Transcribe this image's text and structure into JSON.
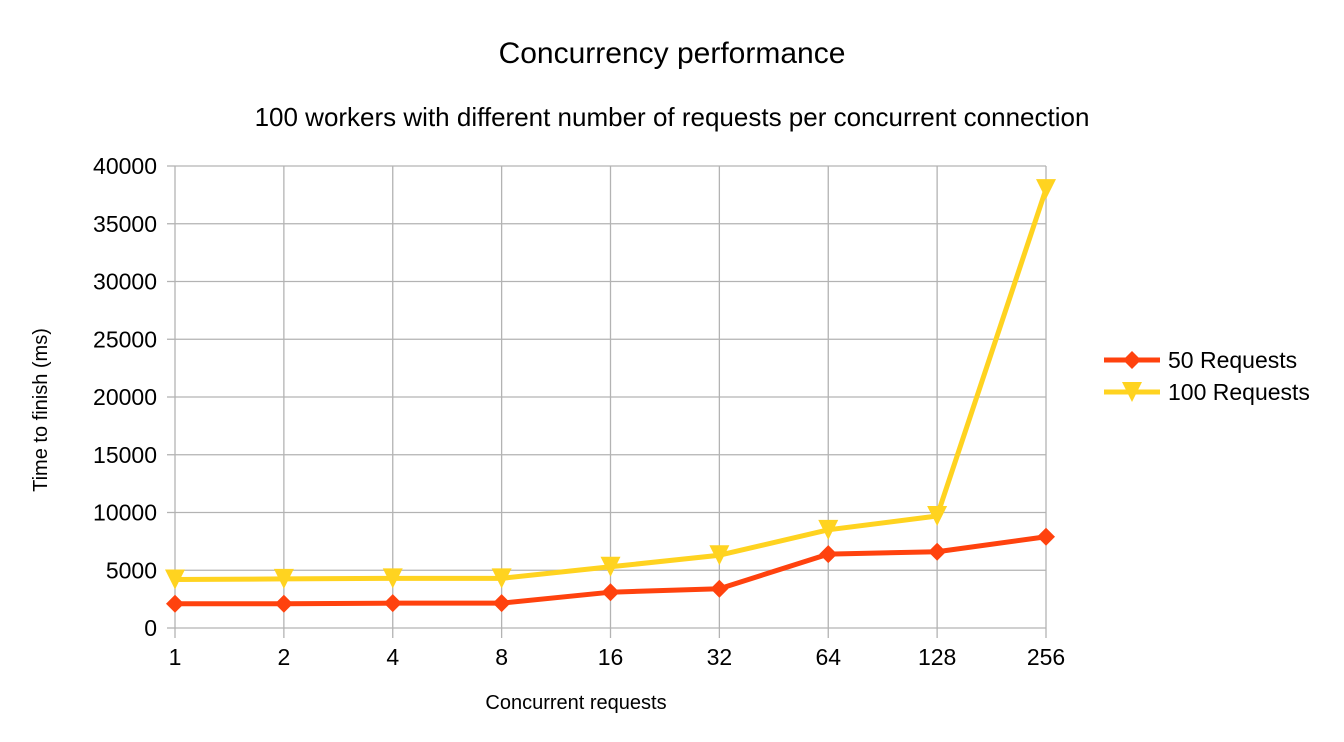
{
  "chart_data": {
    "type": "line",
    "title": "Concurrency performance",
    "subtitle": "100 workers with different number of requests per concurrent connection",
    "xlabel": "Concurrent requests",
    "ylabel": "Time to finish (ms)",
    "categories": [
      "1",
      "2",
      "4",
      "8",
      "16",
      "32",
      "64",
      "128",
      "256"
    ],
    "ylim": [
      0,
      40000
    ],
    "yticks": [
      0,
      5000,
      10000,
      15000,
      20000,
      25000,
      30000,
      35000,
      40000
    ],
    "grid": true,
    "legend_position": "right",
    "series": [
      {
        "name": "50 Requests",
        "color": "#ff420e",
        "marker": "diamond",
        "values": [
          2100,
          2100,
          2150,
          2150,
          3100,
          3400,
          6400,
          6600,
          7900
        ]
      },
      {
        "name": "100 Requests",
        "color": "#ffd320",
        "marker": "triangle-down",
        "values": [
          4200,
          4250,
          4300,
          4300,
          5300,
          6300,
          8500,
          9700,
          38000
        ]
      }
    ]
  }
}
